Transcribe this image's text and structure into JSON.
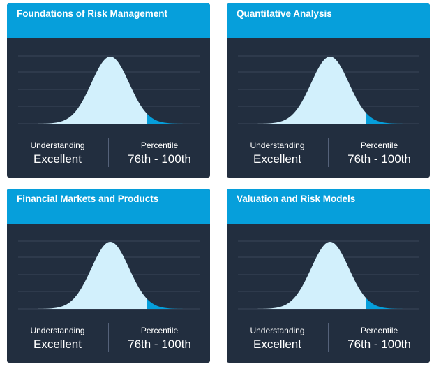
{
  "colors": {
    "header": "#069fdb",
    "card": "#222e3f",
    "curve_fill": "#d2f0fc",
    "highlight": "#069fdb",
    "gridline": "#3b4759"
  },
  "cards": [
    {
      "title": "Foundations of Risk Management",
      "understanding_label": "Understanding",
      "understanding_value": "Excellent",
      "percentile_label": "Percentile",
      "percentile_value": "76th - 100th"
    },
    {
      "title": "Quantitative Analysis",
      "understanding_label": "Understanding",
      "understanding_value": "Excellent",
      "percentile_label": "Percentile",
      "percentile_value": "76th - 100th"
    },
    {
      "title": "Financial Markets and Products",
      "understanding_label": "Understanding",
      "understanding_value": "Excellent",
      "percentile_label": "Percentile",
      "percentile_value": "76th - 100th"
    },
    {
      "title": "Valuation and Risk Models",
      "understanding_label": "Understanding",
      "understanding_value": "Excellent",
      "percentile_label": "Percentile",
      "percentile_value": "76th - 100th"
    }
  ]
}
